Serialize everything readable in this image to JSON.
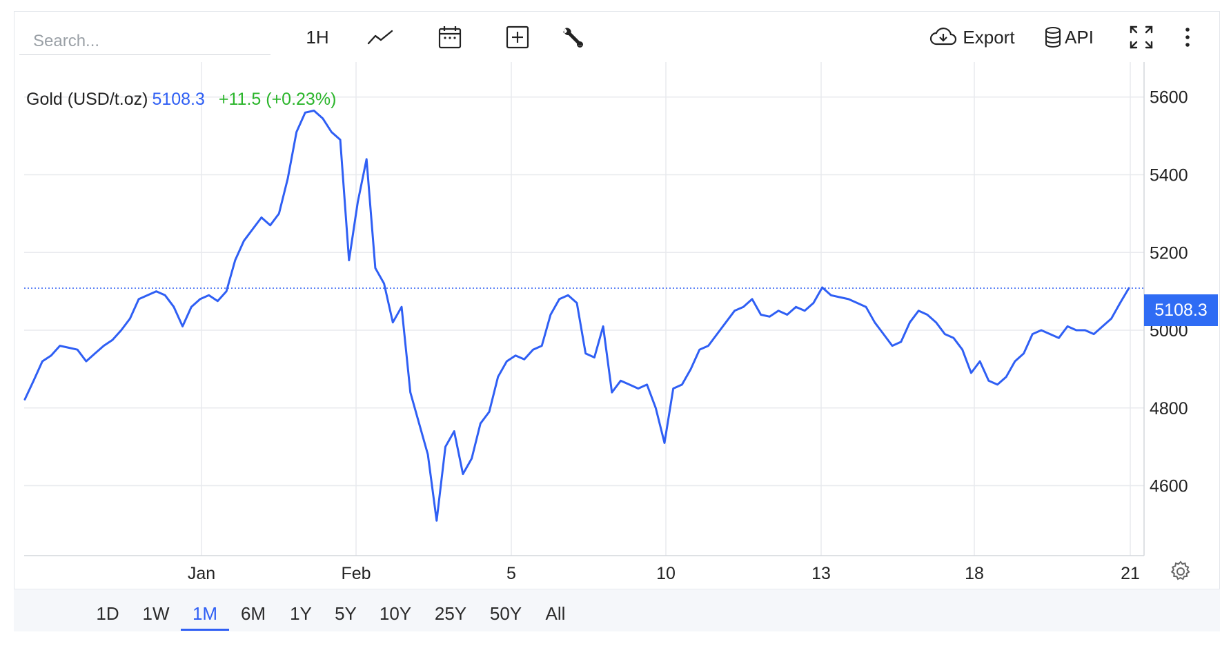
{
  "toolbar": {
    "search_placeholder": "Search...",
    "interval_label": "1H",
    "export_label": "Export",
    "api_label": "API"
  },
  "legend": {
    "name": "Gold (USD/t.oz)",
    "value": "5108.3",
    "change": "+11.5 (+0.23%)"
  },
  "last_price_tag": "5108.3",
  "ranges": [
    "1D",
    "1W",
    "1M",
    "6M",
    "1Y",
    "5Y",
    "10Y",
    "25Y",
    "50Y",
    "All"
  ],
  "active_range": "1M",
  "colors": {
    "line": "#2f5ff4",
    "accent": "#2f6cf4",
    "positive": "#2bb52b",
    "grid": "#e8eaee"
  },
  "chart_data": {
    "type": "line",
    "title": "",
    "xlabel": "",
    "ylabel": "",
    "x_tick_labels": [
      "Jan",
      "Feb",
      "5",
      "10",
      "13",
      "18",
      "21"
    ],
    "y_tick_labels": [
      "5600",
      "5400",
      "5200",
      "5000",
      "4800",
      "4600"
    ],
    "ylim": [
      4420,
      5690
    ],
    "last_value": 5108.3,
    "series": [
      {
        "values": [
          4822,
          4870,
          4920,
          4935,
          4960,
          4955,
          4950,
          4920,
          4940,
          4960,
          4975,
          5000,
          5030,
          5080,
          5090,
          5100,
          5090,
          5060,
          5010,
          5060,
          5080,
          5090,
          5075,
          5100,
          5180,
          5230,
          5260,
          5290,
          5270,
          5300,
          5390,
          5510,
          5560,
          5565,
          5545,
          5510,
          5490,
          5180,
          5330,
          5440,
          5160,
          5120,
          5020,
          5060,
          4840,
          4760,
          4680,
          4510,
          4700,
          4740,
          4630,
          4670,
          4760,
          4790,
          4880,
          4920,
          4935,
          4925,
          4950,
          4960,
          5040,
          5080,
          5090,
          5070,
          4940,
          4930,
          5010,
          4840,
          4870,
          4860,
          4850,
          4860,
          4800,
          4710,
          4850,
          4860,
          4900,
          4950,
          4960,
          4990,
          5020,
          5050,
          5060,
          5080,
          5040,
          5035,
          5050,
          5040,
          5060,
          5050,
          5070,
          5110,
          5090,
          5085,
          5080,
          5070,
          5060,
          5020,
          4990,
          4960,
          4970,
          5020,
          5050,
          5040,
          5020,
          4990,
          4980,
          4950,
          4890,
          4920,
          4870,
          4860,
          4880,
          4920,
          4940,
          4990,
          5000,
          4990,
          4980,
          5010,
          5000,
          5000,
          4990,
          5010,
          5030,
          5070,
          5108.3
        ]
      }
    ]
  }
}
